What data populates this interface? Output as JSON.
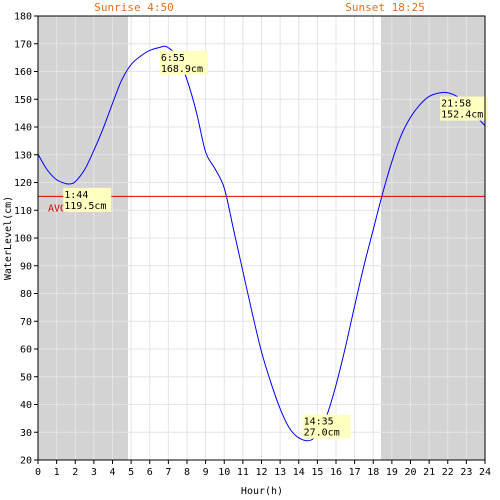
{
  "chart_data": {
    "type": "line",
    "xlabel": "Hour(h)",
    "ylabel": "WaterLevel(cm)",
    "xlim": [
      0,
      24
    ],
    "ylim": [
      20,
      180
    ],
    "x_ticks": [
      "0",
      "1",
      "2",
      "3",
      "4",
      "5",
      "6",
      "7",
      "8",
      "9",
      "10",
      "11",
      "12",
      "13",
      "14",
      "15",
      "16",
      "17",
      "18",
      "19",
      "20",
      "21",
      "22",
      "23",
      "24"
    ],
    "y_ticks": [
      "20",
      "30",
      "40",
      "50",
      "60",
      "70",
      "80",
      "90",
      "100",
      "110",
      "120",
      "130",
      "140",
      "150",
      "160",
      "170",
      "180"
    ],
    "grid": true,
    "sunrise": {
      "label": "Sunrise 4:50",
      "hour": 4.833
    },
    "sunset": {
      "label": "Sunset 18:25",
      "hour": 18.417
    },
    "night_shading_color": "#d3d3d3",
    "series": [
      {
        "color": "#0000ff",
        "x": [
          0,
          0.5,
          1,
          1.5,
          1.733,
          2,
          2.5,
          3,
          3.5,
          4,
          4.5,
          5,
          5.5,
          6,
          6.5,
          6.917,
          7.5,
          8,
          8.5,
          9,
          9.5,
          10,
          10.5,
          11,
          11.5,
          12,
          12.5,
          13,
          13.5,
          14,
          14.583,
          15,
          15.5,
          16,
          16.5,
          17,
          17.5,
          18,
          18.5,
          19,
          19.5,
          20,
          20.5,
          21,
          21.5,
          21.967,
          22.5,
          23,
          23.5,
          24
        ],
        "y": [
          130.2,
          124.5,
          121.0,
          119.6,
          119.5,
          120.3,
          124.6,
          131.6,
          139.5,
          148.5,
          157.0,
          162.5,
          165.5,
          167.6,
          168.6,
          168.9,
          165.0,
          157.0,
          145.5,
          131.0,
          125.0,
          118.0,
          103.0,
          88.0,
          73.0,
          59.0,
          48.0,
          38.5,
          31.5,
          28.0,
          27.0,
          29.5,
          36.0,
          47.0,
          60.5,
          75.5,
          90.0,
          103.0,
          116.0,
          127.5,
          137.0,
          143.5,
          148.0,
          151.0,
          152.2,
          152.4,
          151.0,
          148.0,
          144.0,
          140.5
        ]
      }
    ],
    "average": {
      "label": "AVG 115cm",
      "value": 115,
      "color": "#dd0000"
    },
    "extremes": [
      {
        "hour": 1.733,
        "value": 119.5,
        "time": "1:44",
        "level": "119.5cm"
      },
      {
        "hour": 6.917,
        "value": 168.9,
        "time": "6:55",
        "level": "168.9cm"
      },
      {
        "hour": 14.583,
        "value": 27.0,
        "time": "14:35",
        "level": "27.0cm"
      },
      {
        "hour": 21.967,
        "value": 152.4,
        "time": "21:58",
        "level": "152.4cm"
      }
    ],
    "extreme_label_bg": "#ffffc0"
  }
}
